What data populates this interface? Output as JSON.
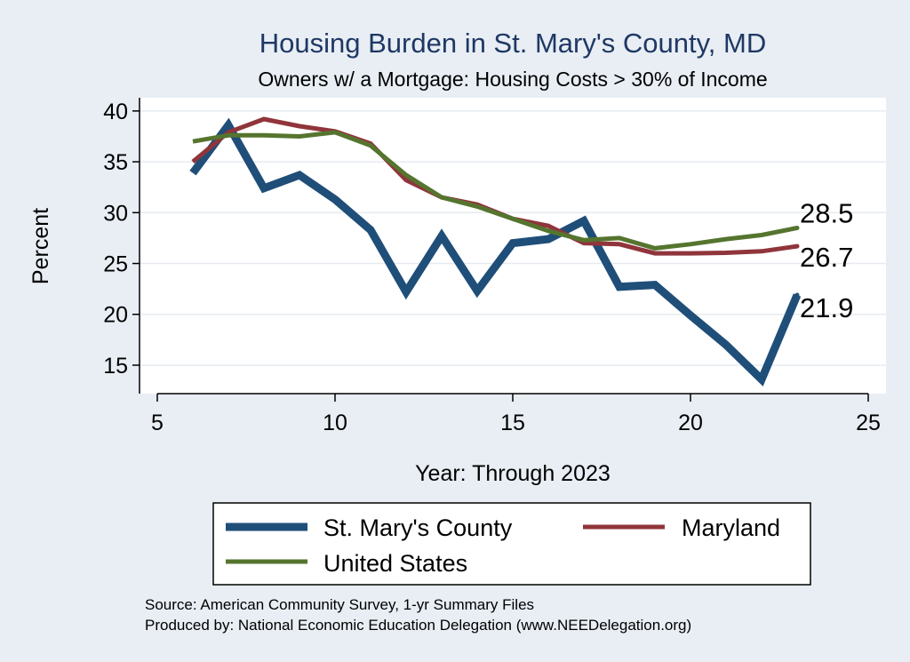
{
  "chart_data": {
    "type": "line",
    "title": "Housing Burden in St. Mary's County, MD",
    "subtitle": "Owners w/ a Mortgage: Housing Costs > 30% of Income",
    "xlabel": "Year: Through 2023",
    "ylabel": "Percent",
    "xlim": [
      4.5,
      25.5
    ],
    "ylim": [
      12.2,
      41.3
    ],
    "xticks": [
      5,
      10,
      15,
      20,
      25
    ],
    "yticks": [
      15,
      20,
      25,
      30,
      35,
      40
    ],
    "grid": true,
    "legend_position": "bottom",
    "series": [
      {
        "name": "St. Mary's County",
        "color": "#1f4e79",
        "x": [
          6,
          7,
          8,
          9,
          10,
          11,
          12,
          13,
          14,
          15,
          16,
          17,
          18,
          19,
          20,
          21,
          22,
          23
        ],
        "y": [
          33.9,
          38.6,
          32.4,
          33.7,
          31.3,
          28.3,
          22.2,
          27.7,
          22.3,
          27.0,
          27.4,
          29.2,
          22.7,
          22.9,
          19.9,
          17.0,
          13.6,
          21.9
        ],
        "end_label": "21.9"
      },
      {
        "name": "Maryland",
        "color": "#90353b",
        "x": [
          6,
          7,
          8,
          9,
          10,
          11,
          12,
          13,
          14,
          15,
          16,
          17,
          18,
          19,
          20,
          21,
          22,
          23
        ],
        "y": [
          35.0,
          37.9,
          39.2,
          38.5,
          38.0,
          36.8,
          33.2,
          31.5,
          30.8,
          29.4,
          28.7,
          27.0,
          26.9,
          26.0,
          26.0,
          26.05,
          26.2,
          26.7
        ],
        "end_label": "26.7"
      },
      {
        "name": "United States",
        "color": "#55752f",
        "x": [
          6,
          7,
          8,
          9,
          10,
          11,
          12,
          13,
          14,
          15,
          16,
          17,
          18,
          19,
          20,
          21,
          22,
          23
        ],
        "y": [
          37.0,
          37.6,
          37.6,
          37.5,
          37.9,
          36.6,
          33.7,
          31.5,
          30.6,
          29.4,
          28.2,
          27.3,
          27.5,
          26.5,
          26.9,
          27.4,
          27.8,
          28.5
        ],
        "end_label": "28.5"
      }
    ]
  },
  "legend": {
    "items": [
      "St. Mary's County",
      "Maryland",
      "United States"
    ]
  },
  "notes": {
    "source": "Source: American Community Survey, 1-yr Summary Files",
    "producer": "Produced by: National Economic Education Delegation (www.NEEDelegation.org)"
  },
  "colors": {
    "background": "#e8eef4",
    "plot_background": "#ffffff",
    "title": "#1f3864"
  }
}
